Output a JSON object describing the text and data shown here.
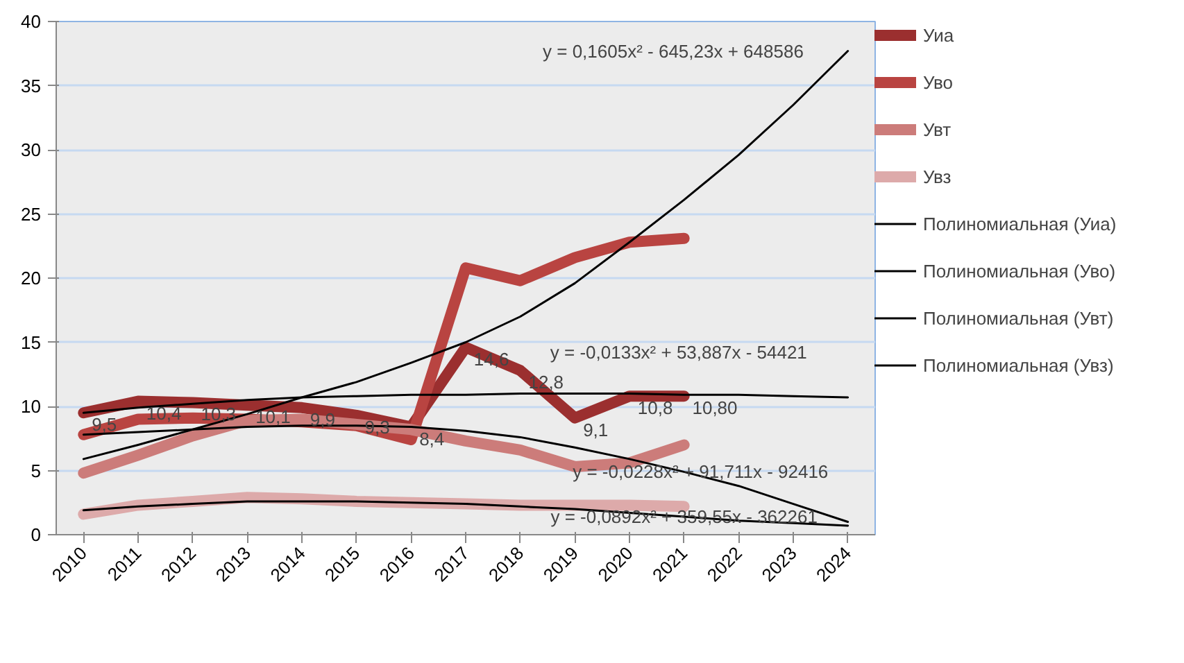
{
  "chart_data": {
    "type": "line",
    "x": [
      2010,
      2011,
      2012,
      2013,
      2014,
      2015,
      2016,
      2017,
      2018,
      2019,
      2020,
      2021
    ],
    "series": [
      {
        "name": "Уиа",
        "color": "#9b2f2f",
        "values": [
          9.5,
          10.4,
          10.3,
          10.1,
          9.9,
          9.3,
          8.4,
          14.6,
          12.8,
          9.1,
          10.8,
          10.8
        ],
        "value_labels": [
          "9,5",
          "10,4",
          "10,3",
          "10,1",
          "9,9",
          "9,3",
          "8,4",
          "14,6",
          "12,8",
          "9,1",
          "10,8",
          "10,80"
        ]
      },
      {
        "name": "Уво",
        "color": "#b94441",
        "values": [
          7.8,
          9.0,
          9.1,
          9.0,
          8.8,
          8.5,
          7.4,
          20.8,
          19.8,
          21.6,
          22.8,
          23.1
        ]
      },
      {
        "name": "Увт",
        "color": "#cc7c7a",
        "values": [
          4.8,
          6.2,
          7.7,
          8.9,
          9.0,
          8.6,
          8.2,
          7.3,
          6.6,
          5.3,
          5.6,
          7.0
        ]
      },
      {
        "name": "Увз",
        "color": "#ddaaaa",
        "values": [
          1.6,
          2.3,
          2.6,
          2.9,
          2.8,
          2.6,
          2.5,
          2.4,
          2.3,
          2.3,
          2.3,
          2.2
        ]
      },
      {
        "name": "Полиномиальная (Уиа)",
        "color": "#000000",
        "x": [
          2010,
          2011,
          2012,
          2013,
          2014,
          2015,
          2016,
          2017,
          2018,
          2019,
          2020,
          2021,
          2022,
          2023,
          2024
        ],
        "values": [
          9.5,
          9.9,
          10.2,
          10.5,
          10.7,
          10.8,
          10.9,
          10.9,
          11.0,
          11.0,
          11.0,
          10.9,
          10.9,
          10.8,
          10.7
        ]
      },
      {
        "name": "Полиномиальная (Уво)",
        "color": "#000000",
        "x": [
          2010,
          2011,
          2012,
          2013,
          2014,
          2015,
          2016,
          2017,
          2018,
          2019,
          2020,
          2021,
          2022,
          2023,
          2024
        ],
        "values": [
          5.9,
          7.0,
          8.2,
          9.4,
          10.7,
          11.9,
          13.4,
          15.0,
          17.0,
          19.6,
          22.8,
          26.1,
          29.6,
          33.5,
          37.7
        ]
      },
      {
        "name": "Полиномиальная (Увт)",
        "color": "#000000",
        "x": [
          2010,
          2011,
          2012,
          2013,
          2014,
          2015,
          2016,
          2017,
          2018,
          2019,
          2020,
          2021,
          2022,
          2023,
          2024
        ],
        "values": [
          7.8,
          8.0,
          8.2,
          8.4,
          8.5,
          8.5,
          8.4,
          8.1,
          7.6,
          6.8,
          5.9,
          4.9,
          3.8,
          2.4,
          1.0
        ]
      },
      {
        "name": "Полиномиальная (Увз)",
        "color": "#000000",
        "x": [
          2010,
          2011,
          2012,
          2013,
          2014,
          2015,
          2016,
          2017,
          2018,
          2019,
          2020,
          2021,
          2022,
          2023,
          2024
        ],
        "values": [
          1.9,
          2.2,
          2.4,
          2.6,
          2.6,
          2.6,
          2.5,
          2.4,
          2.2,
          2.0,
          1.7,
          1.4,
          1.1,
          0.9,
          0.7
        ]
      }
    ],
    "annotations": [
      "y = 0,1605x² - 645,23x + 648586",
      "y = -0,0133x² + 53,887x - 54421",
      "y = -0,0228x² + 91,711x - 92416",
      "y = -0,0892x² + 359,55x - 362261"
    ],
    "xlim": [
      2009.5,
      2024.5
    ],
    "xticks": [
      2010,
      2011,
      2012,
      2013,
      2014,
      2015,
      2016,
      2017,
      2018,
      2019,
      2020,
      2021,
      2022,
      2023,
      2024
    ],
    "ylim": [
      0,
      40
    ],
    "yticks": [
      0,
      5,
      10,
      15,
      20,
      25,
      30,
      35,
      40
    ],
    "grid": "y",
    "legend": "right",
    "line_style": "solid",
    "marker": "none"
  }
}
